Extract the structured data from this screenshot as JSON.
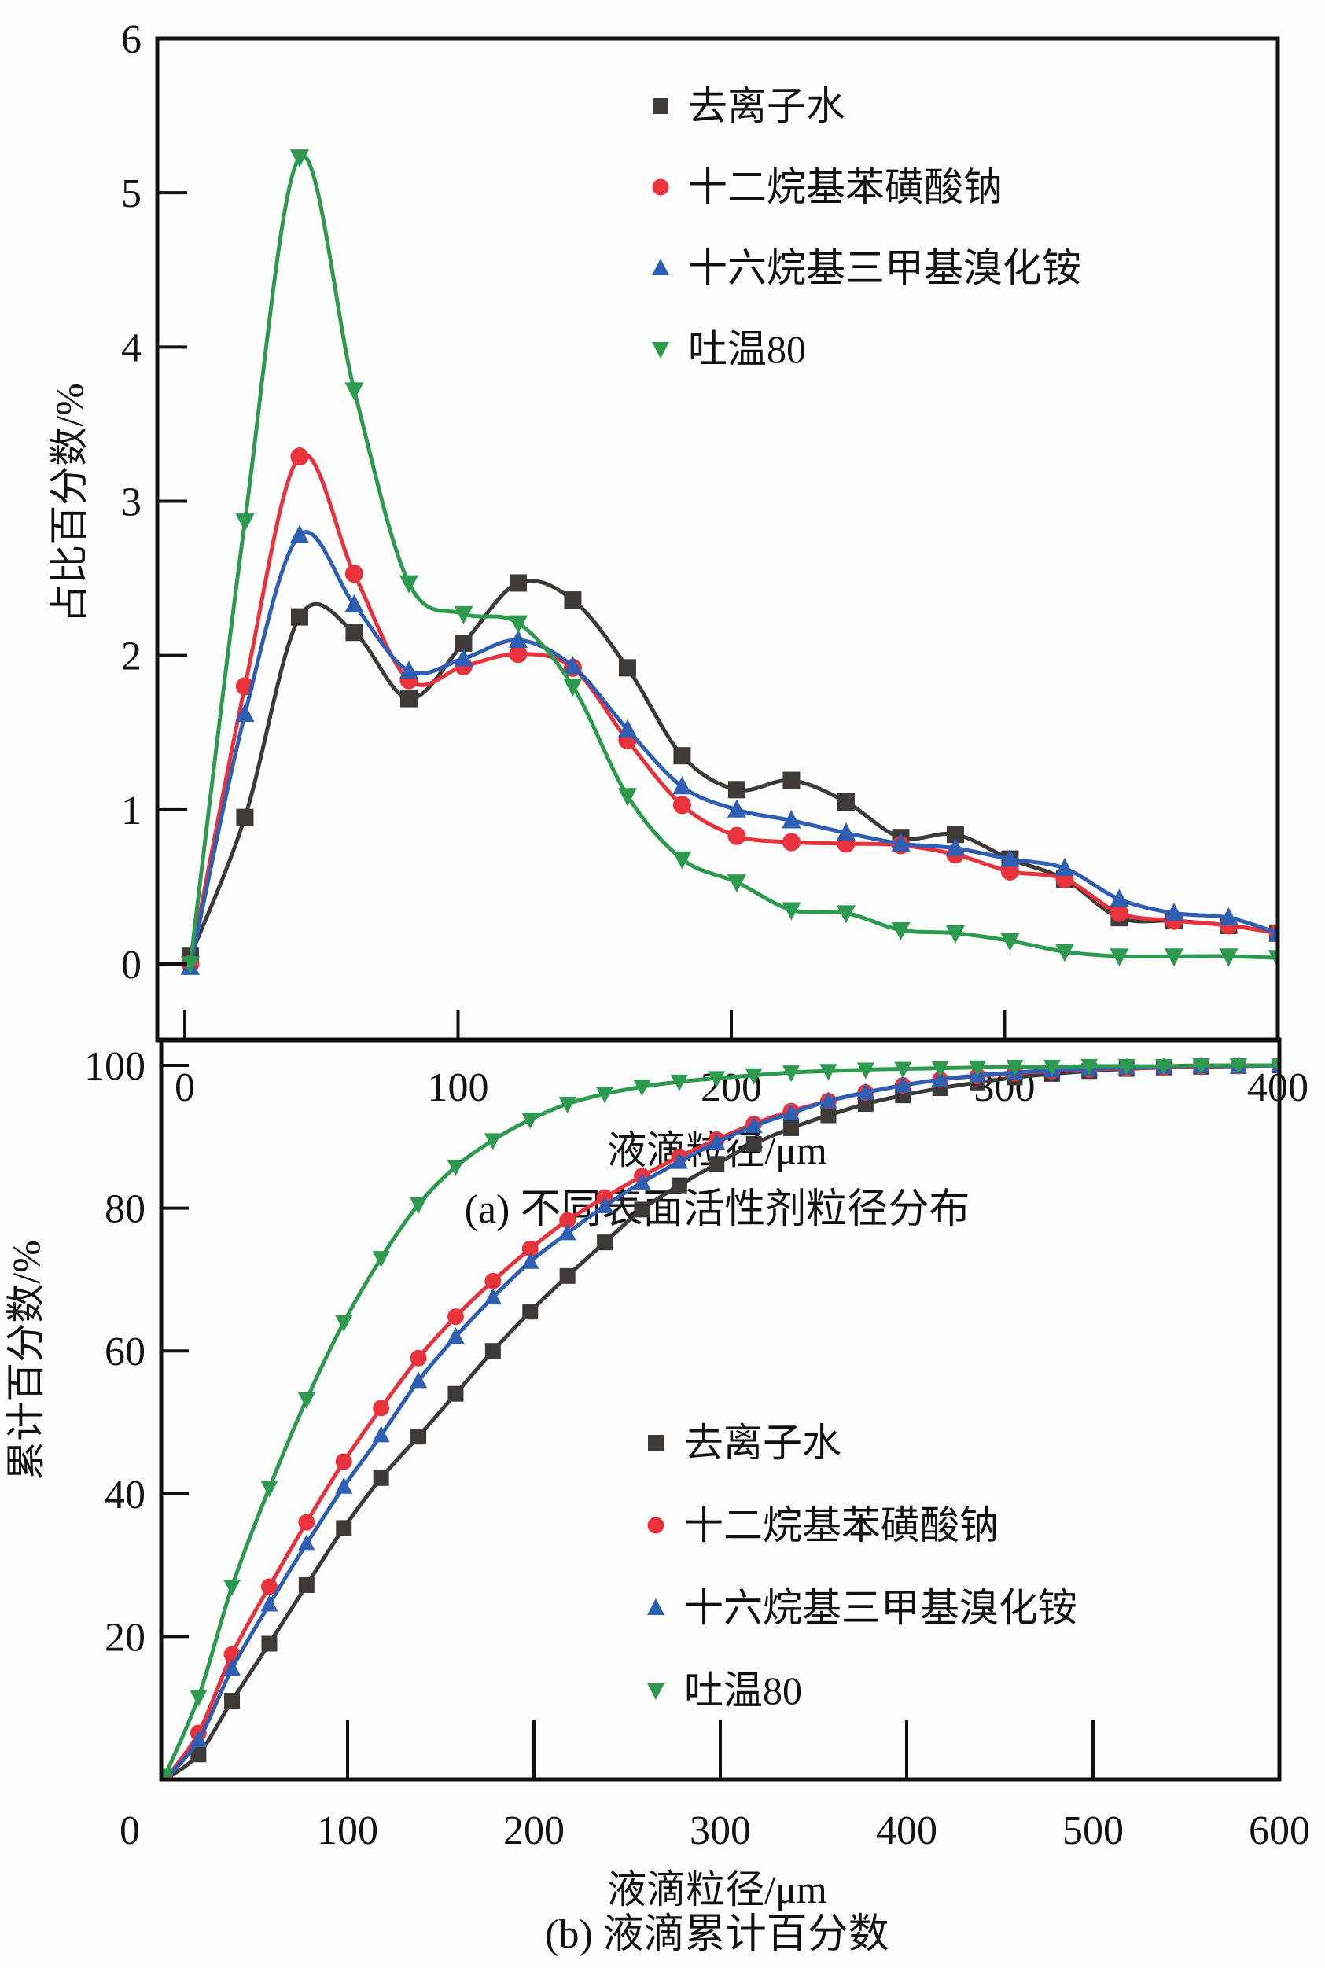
{
  "chart_data": [
    {
      "id": "a",
      "type": "line",
      "caption": "(a) 不同表面活性剂粒径分布",
      "title": "",
      "xlabel": "液滴粒径/μm",
      "ylabel": "占比百分数/%",
      "xlim": [
        -10,
        400
      ],
      "ylim": [
        -0.5,
        6
      ],
      "xticks": [
        0,
        100,
        200,
        300,
        400
      ],
      "xtick_labels": [
        "0",
        "100",
        "200",
        "300",
        "400"
      ],
      "yticks": [
        0,
        1,
        2,
        3,
        4,
        5,
        6
      ],
      "ytick_labels": [
        "0",
        "1",
        "2",
        "3",
        "4",
        "5",
        "6"
      ],
      "grid": false,
      "legend_position": "top-right",
      "x": [
        2,
        22,
        42,
        62,
        82,
        102,
        122,
        142,
        162,
        182,
        202,
        222,
        242,
        262,
        282,
        302,
        322,
        342,
        362,
        382,
        400
      ],
      "series": [
        {
          "name": "去离子水",
          "marker": "square",
          "color": "#3d3a38",
          "values": [
            0.05,
            0.95,
            2.25,
            2.15,
            1.72,
            2.08,
            2.47,
            2.36,
            1.92,
            1.35,
            1.13,
            1.19,
            1.05,
            0.82,
            0.84,
            0.68,
            0.55,
            0.3,
            0.28,
            0.25,
            0.2
          ]
        },
        {
          "name": "十二烷基苯磺酸钠",
          "marker": "circle",
          "color": "#e8323c",
          "values": [
            0.0,
            1.8,
            3.29,
            2.53,
            1.84,
            1.93,
            2.01,
            1.92,
            1.45,
            1.03,
            0.83,
            0.79,
            0.78,
            0.77,
            0.71,
            0.6,
            0.55,
            0.33,
            0.28,
            0.25,
            0.2
          ]
        },
        {
          "name": "十六烷基三甲基溴化铵",
          "marker": "triangle-up",
          "color": "#2f5fb3",
          "values": [
            -0.02,
            1.62,
            2.78,
            2.33,
            1.9,
            1.98,
            2.1,
            1.93,
            1.52,
            1.15,
            1.0,
            0.93,
            0.85,
            0.78,
            0.75,
            0.68,
            0.62,
            0.42,
            0.33,
            0.3,
            0.2
          ]
        },
        {
          "name": "吐温80",
          "marker": "triangle-down",
          "color": "#2e9a50",
          "values": [
            0.0,
            2.87,
            5.23,
            3.72,
            2.47,
            2.27,
            2.21,
            1.8,
            1.09,
            0.68,
            0.53,
            0.35,
            0.33,
            0.22,
            0.2,
            0.15,
            0.08,
            0.05,
            0.05,
            0.05,
            0.04
          ]
        }
      ]
    },
    {
      "id": "b",
      "type": "line",
      "caption": "(b) 液滴累计百分数",
      "title": "",
      "xlabel": "液滴粒径/μm",
      "ylabel": "累计百分数/%",
      "xlim": [
        0,
        600
      ],
      "ylim": [
        0,
        105
      ],
      "xticks": [
        0,
        100,
        200,
        300,
        400,
        500,
        600
      ],
      "xtick_labels": [
        "0",
        "100",
        "200",
        "300",
        "400",
        "500",
        "600"
      ],
      "yticks": [
        20,
        40,
        60,
        80,
        100
      ],
      "ytick_labels": [
        "20",
        "40",
        "60",
        "80",
        "100"
      ],
      "grid": false,
      "legend_position": "center-right",
      "x": [
        2,
        20,
        38,
        58,
        78,
        98,
        118,
        138,
        158,
        178,
        198,
        218,
        238,
        258,
        278,
        298,
        318,
        338,
        358,
        378,
        398,
        418,
        438,
        458,
        478,
        498,
        518,
        538,
        558,
        578,
        600
      ],
      "series": [
        {
          "name": "去离子水",
          "marker": "square",
          "color": "#3d3a38",
          "values": [
            0.0,
            3.5,
            11.0,
            19.0,
            27.2,
            35.2,
            42.2,
            48.0,
            54.0,
            60.0,
            65.5,
            70.5,
            75.2,
            79.8,
            83.2,
            86.2,
            89.0,
            91.2,
            93.0,
            94.6,
            95.8,
            96.8,
            97.6,
            98.3,
            98.8,
            99.2,
            99.5,
            99.7,
            99.8,
            99.9,
            100.0
          ]
        },
        {
          "name": "十二烷基苯磺酸钠",
          "marker": "circle",
          "color": "#e8323c",
          "values": [
            0.0,
            6.5,
            17.5,
            27.0,
            36.0,
            44.5,
            52.0,
            59.0,
            64.8,
            69.8,
            74.3,
            78.3,
            81.5,
            84.5,
            87.2,
            89.6,
            91.8,
            93.6,
            95.0,
            96.2,
            97.2,
            98.0,
            98.5,
            98.9,
            99.2,
            99.4,
            99.6,
            99.7,
            99.8,
            99.9,
            100.0
          ]
        },
        {
          "name": "十六烷基三甲基溴化铵",
          "marker": "triangle-up",
          "color": "#2f5fb3",
          "values": [
            0.0,
            5.5,
            15.5,
            24.5,
            33.0,
            41.0,
            48.2,
            55.8,
            62.0,
            67.5,
            72.5,
            76.5,
            80.3,
            83.6,
            86.5,
            89.2,
            91.5,
            93.3,
            95.0,
            96.2,
            97.2,
            98.0,
            98.6,
            99.0,
            99.3,
            99.5,
            99.7,
            99.8,
            99.9,
            99.9,
            100.0
          ]
        },
        {
          "name": "吐温80",
          "marker": "triangle-down",
          "color": "#2e9a50",
          "values": [
            0.5,
            11.5,
            27.0,
            40.8,
            53.2,
            64.0,
            73.0,
            80.5,
            85.8,
            89.5,
            92.4,
            94.6,
            96.0,
            97.0,
            97.7,
            98.2,
            98.6,
            99.0,
            99.2,
            99.4,
            99.5,
            99.6,
            99.7,
            99.8,
            99.8,
            99.9,
            99.9,
            99.9,
            100.0,
            100.0,
            100.0
          ]
        }
      ]
    }
  ]
}
